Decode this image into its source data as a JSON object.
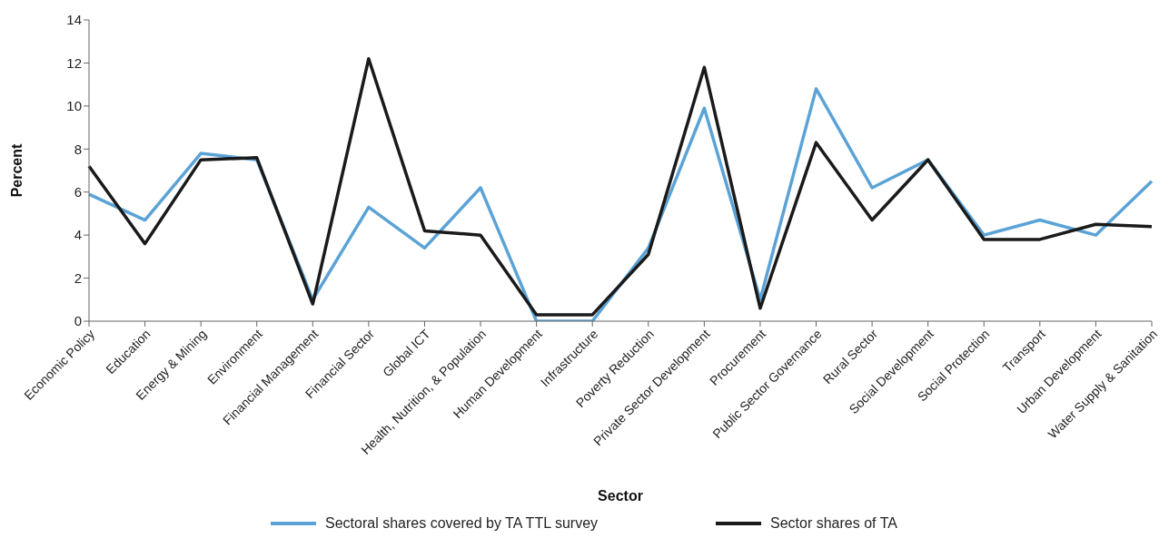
{
  "chart_data": {
    "type": "line",
    "xlabel": "Sector",
    "ylabel": "Percent",
    "categories": [
      "Economic Policy",
      "Education",
      "Energy & Mining",
      "Environment",
      "Financial Management",
      "Financial Sector",
      "Global ICT",
      "Health, Nutrition, & Population",
      "Human Development",
      "Infrastructure",
      "Poverty Reduction",
      "Private Sector Development",
      "Procurement",
      "Public Sector Governance",
      "Rural Sector",
      "Social Development",
      "Social Protection",
      "Transport",
      "Urban Development",
      "Water Supply & Sanitation"
    ],
    "series": [
      {
        "name": "Sectoral shares covered by TA TTL survey",
        "color": "#5ba3d6",
        "values": [
          5.9,
          4.7,
          7.8,
          7.5,
          1.0,
          5.3,
          3.4,
          6.2,
          0,
          0,
          3.4,
          9.9,
          1.0,
          10.8,
          6.2,
          7.5,
          4.0,
          4.7,
          4.0,
          6.5
        ]
      },
      {
        "name": "Sector shares of TA",
        "color": "#1a1a1a",
        "values": [
          7.2,
          3.6,
          7.5,
          7.6,
          0.8,
          12.2,
          4.2,
          4.0,
          0.3,
          0.3,
          3.1,
          11.8,
          0.6,
          8.3,
          4.7,
          7.5,
          3.8,
          3.8,
          4.5,
          4.4
        ]
      }
    ],
    "ylim": [
      0,
      14
    ],
    "yticks": [
      0,
      2,
      4,
      6,
      8,
      10,
      12,
      14
    ],
    "grid": false,
    "legend": "bottom"
  }
}
